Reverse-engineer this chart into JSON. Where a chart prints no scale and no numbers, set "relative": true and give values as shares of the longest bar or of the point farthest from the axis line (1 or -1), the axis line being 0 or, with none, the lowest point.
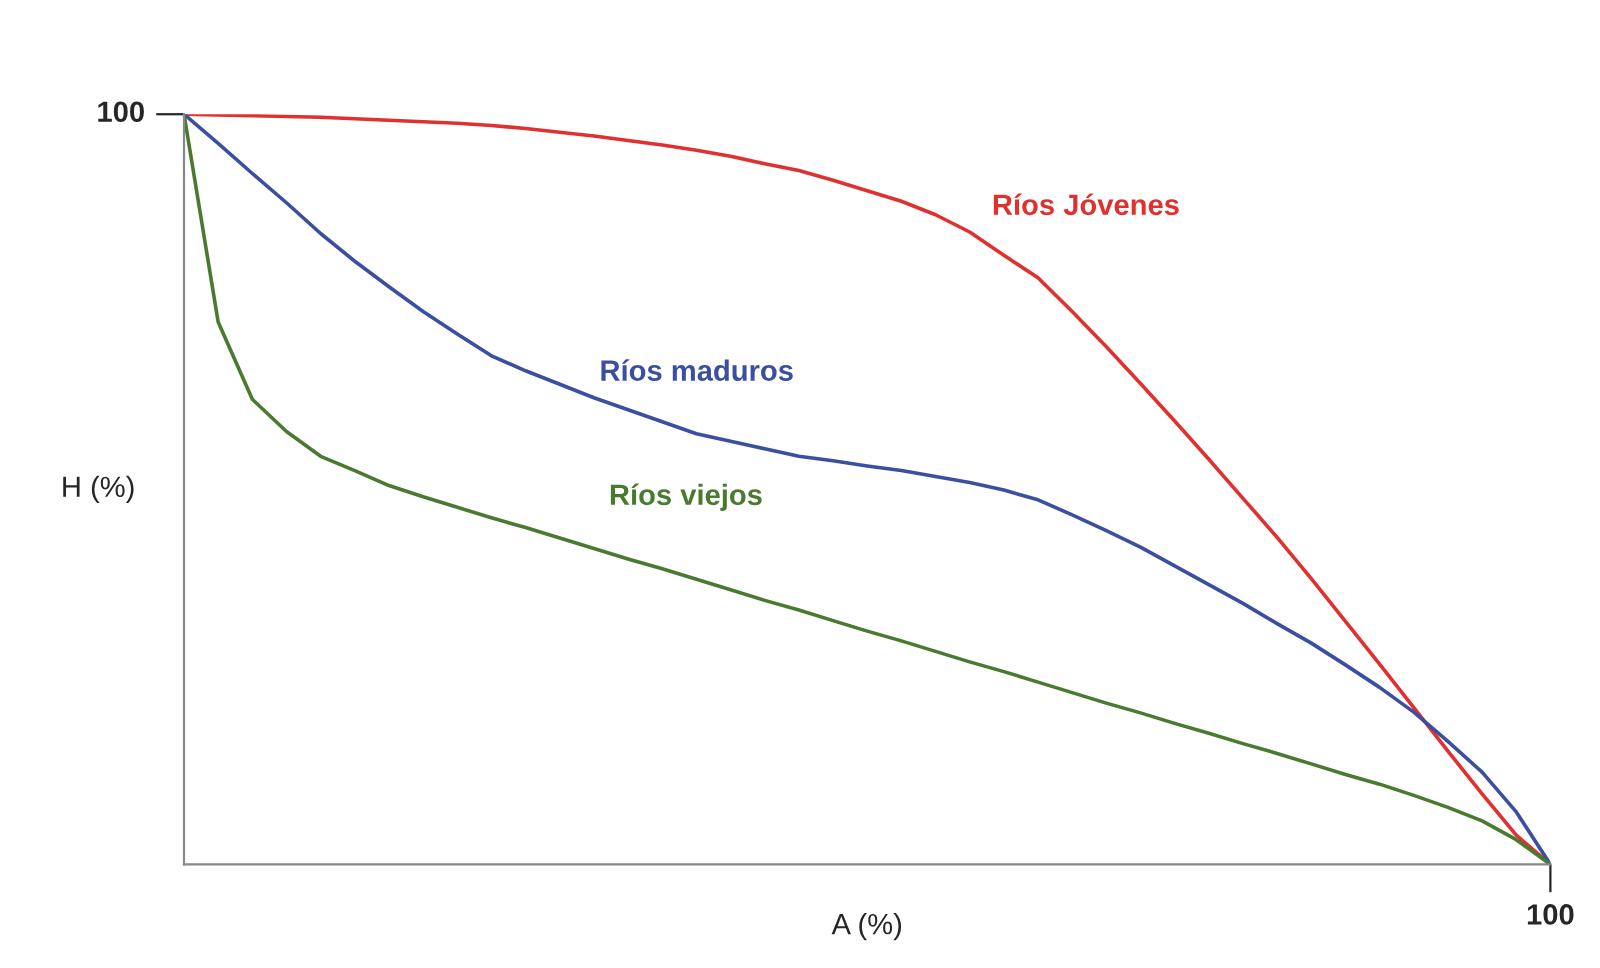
{
  "chart_data": {
    "type": "line",
    "relative": true,
    "xlabel": "A (%)",
    "ylabel": "H (%)",
    "annotations": [
      "100",
      "100"
    ],
    "categories": [
      null,
      null,
      null,
      null,
      null,
      null,
      null,
      null,
      null,
      null,
      null,
      null,
      null,
      null,
      null,
      null,
      null,
      null,
      null,
      null,
      null,
      null,
      null,
      null,
      null,
      null,
      null,
      null,
      null,
      null,
      null,
      null,
      null,
      null,
      null,
      null,
      null,
      null,
      null,
      null,
      null
    ],
    "grid": false,
    "legend": false,
    "marker": "none",
    "line_style": "solid",
    "series": [
      {
        "name": "Ríos Jóvenes",
        "color": "#e03030",
        "values": [
          1,
          0.999,
          0.998,
          0.997,
          0.996,
          0.994,
          0.992,
          0.99,
          0.988,
          0.985,
          0.981,
          0.976,
          0.971,
          0.965,
          0.959,
          0.952,
          0.944,
          0.934,
          0.925,
          0.912,
          0.898,
          0.884,
          0.866,
          0.843,
          0.812,
          0.782,
          0.737,
          0.69,
          0.641,
          0.591,
          0.54,
          0.488,
          0.436,
          0.381,
          0.324,
          0.267,
          0.209,
          0.151,
          0.094,
          0.039,
          0
        ]
      },
      {
        "name": "Ríos maduros",
        "color": "#3a4fa0",
        "values": [
          1,
          0.961,
          0.921,
          0.882,
          0.841,
          0.804,
          0.77,
          0.737,
          0.707,
          0.678,
          0.658,
          0.64,
          0.622,
          0.606,
          0.59,
          0.574,
          0.564,
          0.554,
          0.544,
          0.538,
          0.531,
          0.525,
          0.517,
          0.509,
          0.499,
          0.486,
          0.466,
          0.445,
          0.423,
          0.398,
          0.373,
          0.348,
          0.321,
          0.295,
          0.266,
          0.236,
          0.203,
          0.164,
          0.123,
          0.07,
          0
        ]
      },
      {
        "name": "Ríos viejos",
        "color": "#4a7a30",
        "values": [
          1,
          0.723,
          0.62,
          0.577,
          0.544,
          0.525,
          0.505,
          0.49,
          0.476,
          0.462,
          0.449,
          0.435,
          0.421,
          0.407,
          0.394,
          0.38,
          0.366,
          0.352,
          0.339,
          0.325,
          0.311,
          0.298,
          0.284,
          0.27,
          0.257,
          0.243,
          0.229,
          0.215,
          0.202,
          0.188,
          0.175,
          0.161,
          0.148,
          0.134,
          0.12,
          0.107,
          0.092,
          0.076,
          0.058,
          0.033,
          0
        ]
      }
    ]
  }
}
